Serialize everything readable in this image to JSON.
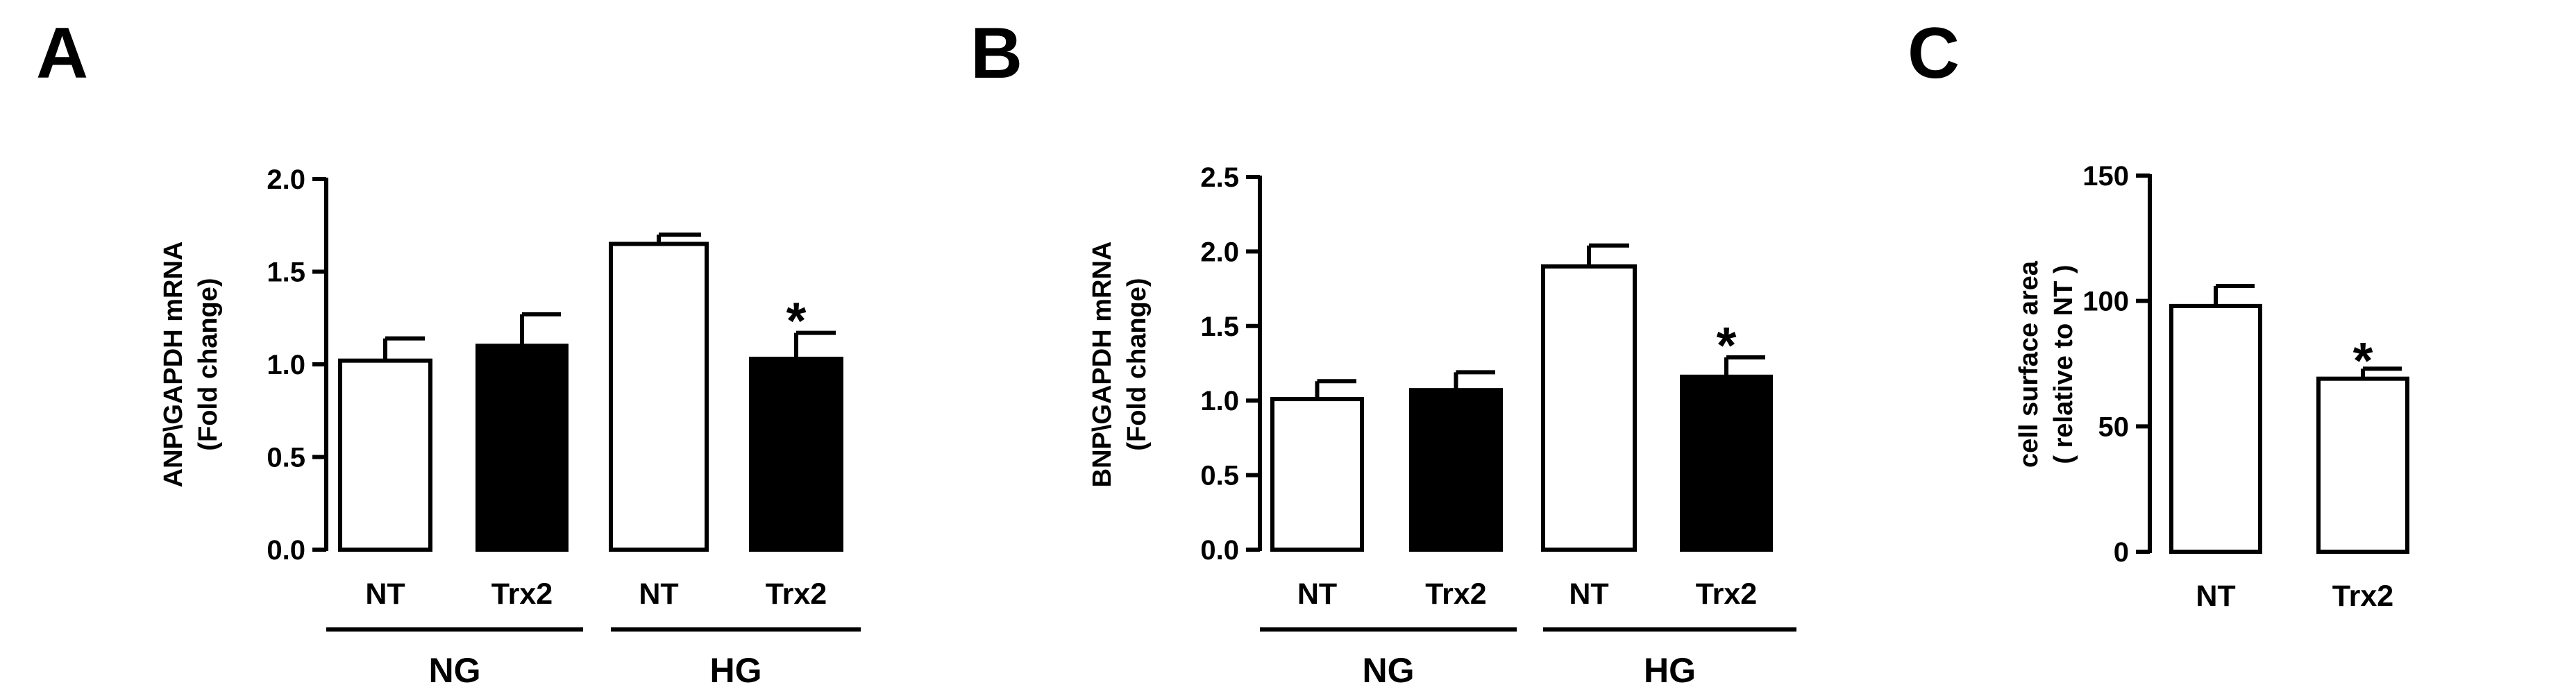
{
  "chart_data": [
    {
      "panel": "A",
      "type": "bar",
      "ylabel_lines": [
        "ANP\\GAPDH mRNA",
        "(Fold change)"
      ],
      "ylim": [
        0,
        2.0
      ],
      "yticks": [
        "0.0",
        "0.5",
        "1.0",
        "1.5",
        "2.0"
      ],
      "categories": [
        "NT",
        "Trx2",
        "NT",
        "Trx2"
      ],
      "values": [
        1.02,
        1.1,
        1.65,
        1.03
      ],
      "errors": [
        0.12,
        0.17,
        0.05,
        0.14
      ],
      "fills": [
        "#ffffff",
        "#000000",
        "#ffffff",
        "#000000"
      ],
      "significance": [
        "",
        "",
        "",
        "*"
      ],
      "groups": [
        {
          "label": "NG",
          "start": 0,
          "end": 1
        },
        {
          "label": "HG",
          "start": 2,
          "end": 3
        }
      ],
      "grid": false
    },
    {
      "panel": "B",
      "type": "bar",
      "ylabel_lines": [
        "BNP\\GAPDH mRNA",
        "(Fold change)"
      ],
      "ylim": [
        0,
        2.5
      ],
      "yticks": [
        "0.0",
        "0.5",
        "1.0",
        "1.5",
        "2.0",
        "2.5"
      ],
      "categories": [
        "NT",
        "Trx2",
        "NT",
        "Trx2"
      ],
      "values": [
        1.01,
        1.07,
        1.9,
        1.16
      ],
      "errors": [
        0.12,
        0.12,
        0.14,
        0.13
      ],
      "fills": [
        "#ffffff",
        "#000000",
        "#ffffff",
        "#000000"
      ],
      "significance": [
        "",
        "",
        "",
        "*"
      ],
      "groups": [
        {
          "label": "NG",
          "start": 0,
          "end": 1
        },
        {
          "label": "HG",
          "start": 2,
          "end": 3
        }
      ],
      "grid": false
    },
    {
      "panel": "C",
      "type": "bar",
      "ylabel_lines": [
        "cell surface area",
        "( relative to NT )"
      ],
      "ylim": [
        0,
        150
      ],
      "yticks": [
        "0",
        "50",
        "100",
        "150"
      ],
      "categories": [
        "NT",
        "Trx2"
      ],
      "values": [
        98,
        69
      ],
      "errors": [
        8,
        4
      ],
      "fills": [
        "#ffffff",
        "#ffffff"
      ],
      "significance": [
        "",
        "*"
      ],
      "groups": [],
      "grid": false
    }
  ],
  "colors": {
    "outline": "#000000",
    "background": "#ffffff"
  }
}
